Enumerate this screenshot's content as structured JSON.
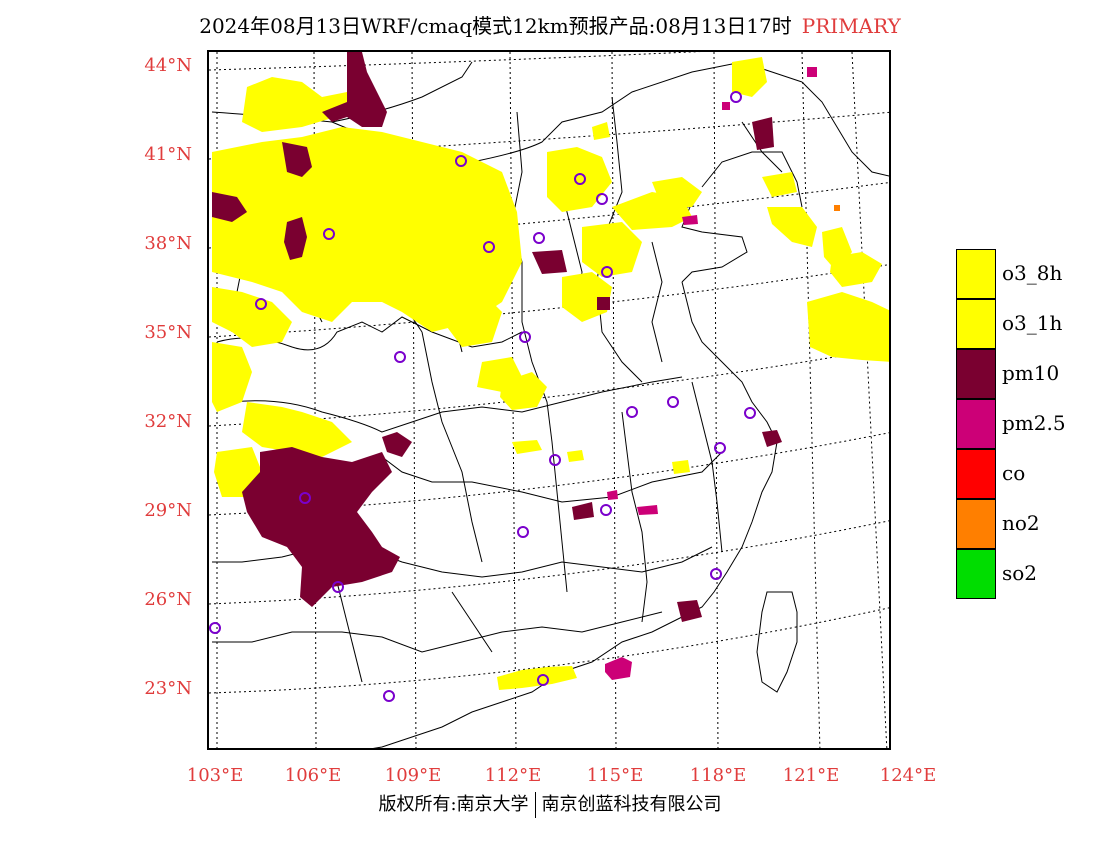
{
  "title": {
    "main": "2024年08月13日WRF/cmaq模式12km预报产品:08月13日17时",
    "flag": "PRIMARY"
  },
  "axes": {
    "lat_labels": [
      "44°N",
      "41°N",
      "38°N",
      "35°N",
      "32°N",
      "29°N",
      "26°N",
      "23°N"
    ],
    "lon_labels": [
      "103°E",
      "106°E",
      "109°E",
      "112°E",
      "115°E",
      "118°E",
      "121°E",
      "124°E"
    ]
  },
  "legend": {
    "items": [
      {
        "label": "o3_8h",
        "color": "#ffff00"
      },
      {
        "label": "o3_1h",
        "color": "#ffff00"
      },
      {
        "label": "pm10",
        "color": "#7a0030"
      },
      {
        "label": "pm2.5",
        "color": "#cc0077"
      },
      {
        "label": "co",
        "color": "#ff0000"
      },
      {
        "label": "no2",
        "color": "#ff7f00"
      },
      {
        "label": "so2",
        "color": "#00dd00"
      }
    ]
  },
  "footer": {
    "left": "版权所有:南京大学",
    "right": "南京创蓝科技有限公司"
  }
}
